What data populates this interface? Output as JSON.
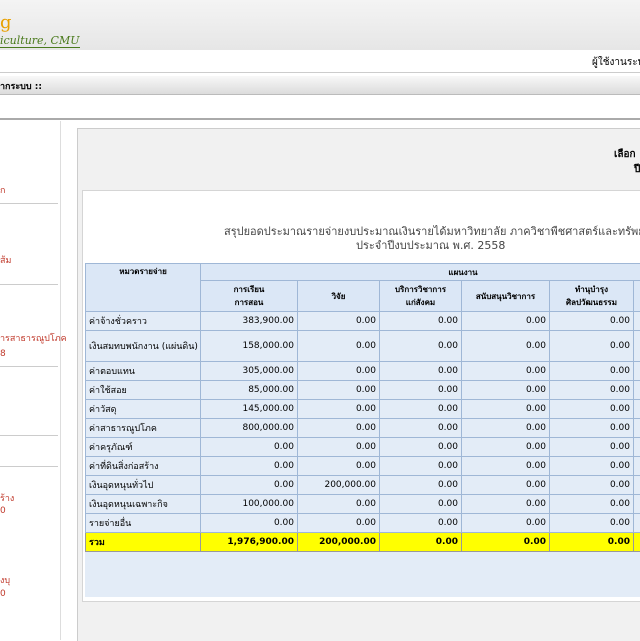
{
  "header": {
    "logo_initial": "g",
    "logo_text": "iculture, CMU",
    "user_label": "ผู้ใช้งานระบบ"
  },
  "nav": {
    "item": "ากระบบ ::"
  },
  "sidebar": {
    "items": [
      "ก",
      "ส้ม",
      "ารสาธารณูปโภค",
      "8",
      "ร้าง",
      "0",
      "งบุ",
      "0"
    ]
  },
  "panel": {
    "select_label": "เลือก",
    "year_label": "ปี"
  },
  "report": {
    "title_line1": "สรุปยอดประมาณรายจ่ายงบประมาณเงินรายได้มหาวิทยาลัย ภาควิชาพืชศาสตร์และทรัพยากร",
    "title_line2": "ประจำปีงบประมาณ พ.ศ. 2558",
    "table": {
      "header_category": "หมวดรายจ่าย",
      "header_group": "แผนงาน",
      "columns": [
        [
          "การเรียน",
          "การสอน"
        ],
        [
          "วิจัย"
        ],
        [
          "บริการวิชาการ",
          "แก่สังคม"
        ],
        [
          "สนับสนุนวิชาการ"
        ],
        [
          "ทำนุบำรุง",
          "ศิลปวัฒนธรรม"
        ]
      ],
      "rows": [
        {
          "label": "ค่าจ้างชั่วคราว",
          "values": [
            "383,900.00",
            "0.00",
            "0.00",
            "0.00",
            "0.00"
          ]
        },
        {
          "label": "เงินสมทบพนักงาน (แผ่นดิน)",
          "values": [
            "158,000.00",
            "0.00",
            "0.00",
            "0.00",
            "0.00"
          ]
        },
        {
          "label": "ค่าตอบแทน",
          "values": [
            "305,000.00",
            "0.00",
            "0.00",
            "0.00",
            "0.00"
          ]
        },
        {
          "label": "ค่าใช้สอย",
          "values": [
            "85,000.00",
            "0.00",
            "0.00",
            "0.00",
            "0.00"
          ]
        },
        {
          "label": "ค่าวัสดุ",
          "values": [
            "145,000.00",
            "0.00",
            "0.00",
            "0.00",
            "0.00"
          ]
        },
        {
          "label": "ค่าสาธารณูปโภค",
          "values": [
            "800,000.00",
            "0.00",
            "0.00",
            "0.00",
            "0.00"
          ]
        },
        {
          "label": "ค่าครุภัณฑ์",
          "values": [
            "0.00",
            "0.00",
            "0.00",
            "0.00",
            "0.00"
          ]
        },
        {
          "label": "ค่าที่ดินสิ่งก่อสร้าง",
          "values": [
            "0.00",
            "0.00",
            "0.00",
            "0.00",
            "0.00"
          ]
        },
        {
          "label": "เงินอุดหนุนทั่วไป",
          "values": [
            "0.00",
            "200,000.00",
            "0.00",
            "0.00",
            "0.00"
          ]
        },
        {
          "label": "เงินอุดหนุนเฉพาะกิจ",
          "values": [
            "100,000.00",
            "0.00",
            "0.00",
            "0.00",
            "0.00"
          ]
        },
        {
          "label": "รายจ่ายอื่น",
          "values": [
            "0.00",
            "0.00",
            "0.00",
            "0.00",
            "0.00"
          ]
        }
      ],
      "total": {
        "label": "รวม",
        "values": [
          "1,976,900.00",
          "200,000.00",
          "0.00",
          "0.00",
          "0.00"
        ]
      }
    }
  }
}
